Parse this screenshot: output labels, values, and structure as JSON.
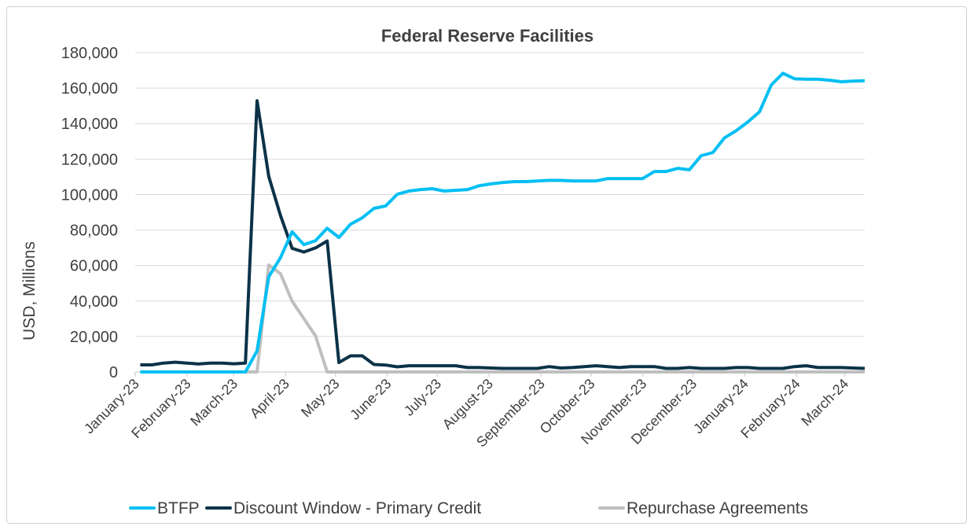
{
  "chart_data": {
    "type": "line",
    "title": "Federal Reserve Facilities",
    "xlabel": "",
    "ylabel": "USD, Millions",
    "ylim": [
      0,
      180000
    ],
    "yticks": [
      "0",
      "20,000",
      "40,000",
      "60,000",
      "80,000",
      "100,000",
      "120,000",
      "140,000",
      "160,000",
      "180,000"
    ],
    "ytick_values": [
      0,
      20000,
      40000,
      60000,
      80000,
      100000,
      120000,
      140000,
      160000,
      180000
    ],
    "xlim": [
      "2023-01-01",
      "2024-03-13"
    ],
    "xticks": [
      "January-23",
      "February-23",
      "March-23",
      "April-23",
      "May-23",
      "June-23",
      "July-23",
      "August-23",
      "September-23",
      "October-23",
      "November-23",
      "December-23",
      "January-24",
      "February-24",
      "March-24"
    ],
    "xtick_dates": [
      "2023-01-01",
      "2023-02-01",
      "2023-03-01",
      "2023-04-01",
      "2023-05-01",
      "2023-06-01",
      "2023-07-01",
      "2023-08-01",
      "2023-09-01",
      "2023-10-01",
      "2023-11-01",
      "2023-12-01",
      "2024-01-01",
      "2024-02-01",
      "2024-03-01"
    ],
    "grid": true,
    "legend_position": "bottom",
    "x": [
      "2023-01-04",
      "2023-01-11",
      "2023-01-18",
      "2023-01-25",
      "2023-02-01",
      "2023-02-08",
      "2023-02-15",
      "2023-02-22",
      "2023-03-01",
      "2023-03-08",
      "2023-03-15",
      "2023-03-22",
      "2023-03-29",
      "2023-04-05",
      "2023-04-12",
      "2023-04-19",
      "2023-04-26",
      "2023-05-03",
      "2023-05-10",
      "2023-05-17",
      "2023-05-24",
      "2023-05-31",
      "2023-06-07",
      "2023-06-14",
      "2023-06-21",
      "2023-06-28",
      "2023-07-05",
      "2023-07-12",
      "2023-07-19",
      "2023-07-26",
      "2023-08-02",
      "2023-08-09",
      "2023-08-16",
      "2023-08-23",
      "2023-08-30",
      "2023-09-06",
      "2023-09-13",
      "2023-09-20",
      "2023-09-27",
      "2023-10-04",
      "2023-10-11",
      "2023-10-18",
      "2023-10-25",
      "2023-11-01",
      "2023-11-08",
      "2023-11-15",
      "2023-11-22",
      "2023-11-29",
      "2023-12-06",
      "2023-12-13",
      "2023-12-20",
      "2023-12-27",
      "2024-01-03",
      "2024-01-10",
      "2024-01-17",
      "2024-01-24",
      "2024-01-31",
      "2024-02-07",
      "2024-02-14",
      "2024-02-21",
      "2024-02-28",
      "2024-03-06",
      "2024-03-13"
    ],
    "series": [
      {
        "name": "BTFP",
        "color": "#00bff3",
        "values": [
          0,
          0,
          0,
          0,
          0,
          0,
          0,
          0,
          0,
          0,
          11900,
          53700,
          64400,
          79000,
          71800,
          74000,
          81000,
          75800,
          83300,
          86900,
          92200,
          93600,
          100200,
          102000,
          102800,
          103300,
          102000,
          102400,
          102800,
          105000,
          106000,
          106800,
          107300,
          107300,
          107700,
          108000,
          108000,
          107700,
          107700,
          107700,
          109000,
          109000,
          109000,
          109000,
          113000,
          113000,
          114800,
          114000,
          121900,
          123700,
          132000,
          136000,
          141000,
          146700,
          161800,
          168400,
          165300,
          165000,
          165000,
          164500,
          163600,
          164000,
          164200
        ]
      },
      {
        "name": "Discount Window - Primary Credit",
        "color": "#0b3248",
        "values": [
          4000,
          4000,
          5000,
          5500,
          5000,
          4500,
          5000,
          5000,
          4600,
          5000,
          152900,
          110200,
          88200,
          69700,
          67600,
          69900,
          73800,
          5300,
          9100,
          9100,
          4200,
          3900,
          2900,
          3500,
          3500,
          3500,
          3500,
          3500,
          2500,
          2500,
          2200,
          2000,
          2000,
          2000,
          2000,
          3000,
          2200,
          2500,
          3000,
          3500,
          3000,
          2500,
          3000,
          3000,
          3000,
          2000,
          2000,
          2500,
          2000,
          2000,
          2000,
          2500,
          2500,
          2000,
          2000,
          2000,
          3000,
          3500,
          2500,
          2500,
          2500,
          2200,
          2000
        ]
      },
      {
        "name": "Repurchase Agreements",
        "color": "#bfbfbf",
        "values": [
          0,
          0,
          0,
          0,
          0,
          0,
          0,
          0,
          0,
          0,
          0,
          60300,
          55400,
          39900,
          30100,
          20400,
          0,
          0,
          0,
          0,
          0,
          0,
          0,
          0,
          0,
          0,
          0,
          0,
          0,
          0,
          0,
          0,
          0,
          0,
          0,
          0,
          0,
          0,
          0,
          0,
          0,
          0,
          0,
          0,
          0,
          0,
          0,
          0,
          0,
          0,
          0,
          0,
          0,
          0,
          0,
          0,
          0,
          0,
          0,
          0,
          0,
          0,
          0
        ]
      }
    ]
  }
}
